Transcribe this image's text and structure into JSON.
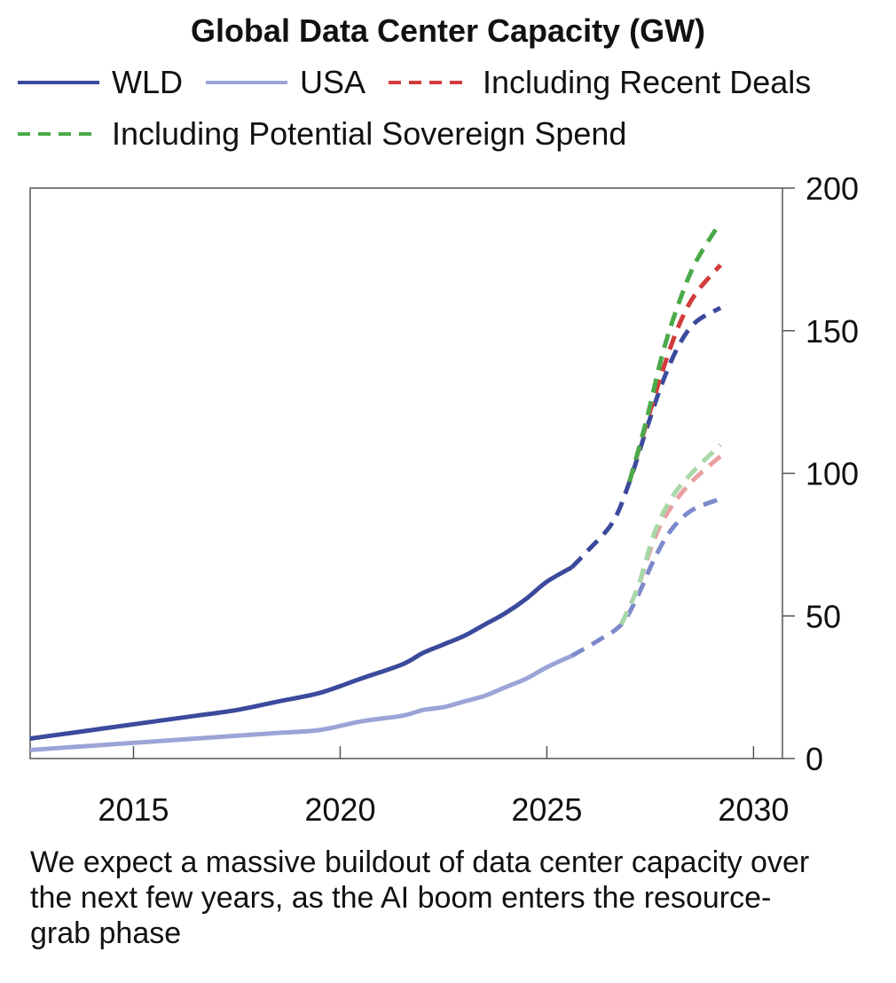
{
  "colors": {
    "wld": "#3b4a9c",
    "usa": "#9aa4d6",
    "recent_deals": "#d23c3c",
    "sovereign": "#4aaa4a",
    "wld_proj": "#3b4a9c",
    "usa_proj": "#7d89cc",
    "recent_proj_usa": "#e8a0a0",
    "sovereign_proj_usa": "#a8d8a8",
    "axis": "#555555"
  },
  "caption": "We expect a massive buildout of data center capacity over the next few years, as the AI boom enters the resource-grab phase",
  "chart_data": {
    "type": "line",
    "title": "Global Data Center Capacity (GW)",
    "xlabel": "",
    "ylabel": "",
    "xlim": [
      2012.5,
      2030.7
    ],
    "ylim": [
      0,
      200
    ],
    "xticks": [
      2015,
      2020,
      2025,
      2030
    ],
    "yticks": [
      0,
      50,
      100,
      150,
      200
    ],
    "y_axis_side": "right",
    "legend": [
      {
        "label": "WLD",
        "style": "solid",
        "color_key": "wld"
      },
      {
        "label": "USA",
        "style": "solid",
        "color_key": "usa"
      },
      {
        "label": "Including Recent Deals",
        "style": "dashed",
        "color_key": "recent_deals"
      },
      {
        "label": "Including Potential Sovereign Spend",
        "style": "dashed",
        "color_key": "sovereign"
      }
    ],
    "series": [
      {
        "name": "WLD",
        "style": "solid",
        "color_key": "wld",
        "x": [
          2012.5,
          2013.5,
          2014.5,
          2015.5,
          2016.5,
          2017.5,
          2018.5,
          2019.5,
          2020.5,
          2021.5,
          2022,
          2022.5,
          2023,
          2023.5,
          2024,
          2024.5,
          2025,
          2025.6
        ],
        "y": [
          7,
          9,
          11,
          13,
          15,
          17,
          20,
          23,
          28,
          33,
          37,
          40,
          43,
          47,
          51,
          56,
          62,
          67
        ]
      },
      {
        "name": "USA",
        "style": "solid",
        "color_key": "usa",
        "x": [
          2012.5,
          2013.5,
          2014.5,
          2015.5,
          2016.5,
          2017.5,
          2018.5,
          2019.5,
          2020.5,
          2021.5,
          2022,
          2022.5,
          2023,
          2023.5,
          2024,
          2024.5,
          2025,
          2025.6
        ],
        "y": [
          3,
          4,
          5,
          6,
          7,
          8,
          9,
          10,
          13,
          15,
          17,
          18,
          20,
          22,
          25,
          28,
          32,
          36
        ]
      },
      {
        "name": "WLD projection",
        "style": "dashed",
        "color_key": "wld_proj",
        "x": [
          2025.6,
          2026,
          2026.6,
          2027,
          2027.4,
          2027.8,
          2028.2,
          2028.6,
          2029.2
        ],
        "y": [
          67,
          73,
          83,
          97,
          115,
          132,
          145,
          153,
          158
        ]
      },
      {
        "name": "WLD incl. Recent Deals",
        "style": "dashed",
        "color_key": "recent_deals",
        "x": [
          2027,
          2027.4,
          2027.8,
          2028.2,
          2028.6,
          2029.2
        ],
        "y": [
          97,
          117,
          136,
          152,
          163,
          173
        ]
      },
      {
        "name": "WLD incl. Sovereign Spend",
        "style": "dashed",
        "color_key": "sovereign",
        "x": [
          2027,
          2027.4,
          2027.8,
          2028.2,
          2028.6,
          2029.2
        ],
        "y": [
          97,
          118,
          142,
          160,
          174,
          188
        ]
      },
      {
        "name": "USA projection",
        "style": "dashed",
        "color_key": "usa_proj",
        "x": [
          2025.6,
          2026.2,
          2026.8,
          2027.2,
          2027.6,
          2028,
          2028.5,
          2029.2
        ],
        "y": [
          36,
          41,
          47,
          57,
          70,
          80,
          87,
          91
        ]
      },
      {
        "name": "USA incl. Recent Deals",
        "style": "dashed",
        "color_key": "recent_proj_usa",
        "x": [
          2026.8,
          2027.2,
          2027.6,
          2028,
          2028.5,
          2029.2
        ],
        "y": [
          47,
          60,
          77,
          88,
          97,
          106
        ]
      },
      {
        "name": "USA incl. Sovereign Spend",
        "style": "dashed",
        "color_key": "sovereign_proj_usa",
        "x": [
          2026.8,
          2027.2,
          2027.6,
          2028,
          2028.5,
          2029.2
        ],
        "y": [
          47,
          60,
          79,
          91,
          100,
          110
        ]
      }
    ]
  }
}
